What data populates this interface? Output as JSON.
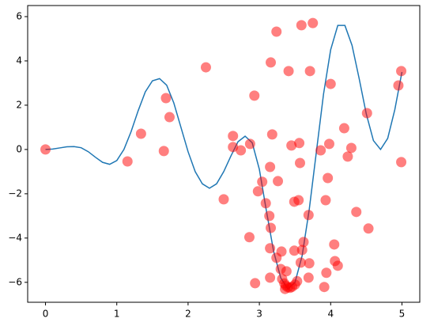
{
  "chart_data": {
    "type": "line",
    "xlim": [
      -0.25,
      5.25
    ],
    "ylim": [
      -6.9,
      6.5
    ],
    "xticks": [
      0,
      1,
      2,
      3,
      4,
      5
    ],
    "yticks": [
      {
        "value": -6,
        "label": "−6"
      },
      {
        "value": -4,
        "label": "−4"
      },
      {
        "value": -2,
        "label": "−2"
      },
      0,
      2,
      4,
      6
    ],
    "series": [
      {
        "type": "line",
        "color": "#1f77b4",
        "x": [
          0,
          0.1,
          0.2,
          0.3,
          0.4,
          0.5,
          0.6,
          0.7,
          0.8,
          0.9,
          1.0,
          1.1,
          1.2,
          1.3,
          1.4,
          1.5,
          1.6,
          1.7,
          1.8,
          1.9,
          2.0,
          2.1,
          2.2,
          2.3,
          2.4,
          2.5,
          2.6,
          2.7,
          2.8,
          2.9,
          3.0,
          3.1,
          3.2,
          3.3,
          3.4,
          3.5,
          3.6,
          3.7,
          3.8,
          3.9,
          4.0,
          4.1,
          4.2,
          4.3,
          4.4,
          4.5,
          4.6,
          4.7,
          4.8,
          4.9,
          5.0
        ],
        "values": [
          0,
          0.02,
          0.07,
          0.12,
          0.13,
          0.08,
          -0.1,
          -0.35,
          -0.58,
          -0.67,
          -0.5,
          0.0,
          0.8,
          1.75,
          2.6,
          3.1,
          3.2,
          2.9,
          2.1,
          1.0,
          -0.1,
          -1.0,
          -1.55,
          -1.75,
          -1.55,
          -1.0,
          -0.3,
          0.35,
          0.6,
          0.3,
          -0.9,
          -2.8,
          -4.6,
          -5.8,
          -6.3,
          -6.0,
          -4.8,
          -2.7,
          -0.1,
          2.5,
          4.5,
          5.6,
          5.6,
          4.7,
          3.2,
          1.6,
          0.4,
          0.0,
          0.5,
          1.8,
          3.5
        ]
      },
      {
        "type": "scatter",
        "color": "#ff0000",
        "x": [
          0,
          1.15,
          1.34,
          1.69,
          1.74,
          1.66,
          2.25,
          2.5,
          2.63,
          2.63,
          2.74,
          2.87,
          2.93,
          2.86,
          2.94,
          2.98,
          3.04,
          3.09,
          3.14,
          3.16,
          3.15,
          3.16,
          3.18,
          3.24,
          3.26,
          3.15,
          3.15,
          3.24,
          3.31,
          3.41,
          3.45,
          3.49,
          3.49,
          3.55,
          3.56,
          3.57,
          3.59,
          3.58,
          3.6,
          3.62,
          3.69,
          3.71,
          3.7,
          3.75,
          3.69,
          3.86,
          3.94,
          3.93,
          3.96,
          3.98,
          4.0,
          3.91,
          4.05,
          4.06,
          4.1,
          4.19,
          4.24,
          4.29,
          4.36,
          4.51,
          4.53,
          4.95,
          4.99,
          4.99,
          3.32,
          3.35,
          3.37,
          3.4,
          3.43,
          3.46,
          3.5,
          3.53,
          3.38,
          3.3,
          3.36
        ],
        "values": [
          0,
          -0.54,
          0.71,
          2.32,
          1.46,
          -0.07,
          3.71,
          -2.25,
          0.61,
          0.11,
          -0.04,
          0.25,
          2.43,
          -3.96,
          -6.04,
          -1.89,
          -1.46,
          -2.43,
          -3.0,
          -3.54,
          -0.79,
          3.93,
          0.68,
          5.32,
          -1.43,
          -4.46,
          -5.79,
          -4.89,
          -4.61,
          3.54,
          0.18,
          -4.57,
          -2.36,
          -2.29,
          0.29,
          -0.61,
          5.61,
          -5.11,
          -4.54,
          -4.18,
          -2.96,
          3.54,
          -5.14,
          5.71,
          -5.79,
          -0.04,
          -5.57,
          -2.29,
          -1.29,
          0.25,
          2.96,
          -6.21,
          -4.29,
          -5.04,
          -5.25,
          0.96,
          -0.32,
          0.07,
          -2.82,
          1.64,
          -3.57,
          2.89,
          3.54,
          -0.57,
          -5.85,
          -6.05,
          -6.15,
          -6.22,
          -6.25,
          -6.2,
          -6.1,
          -5.95,
          -5.5,
          -5.4,
          -6.3
        ]
      }
    ]
  }
}
